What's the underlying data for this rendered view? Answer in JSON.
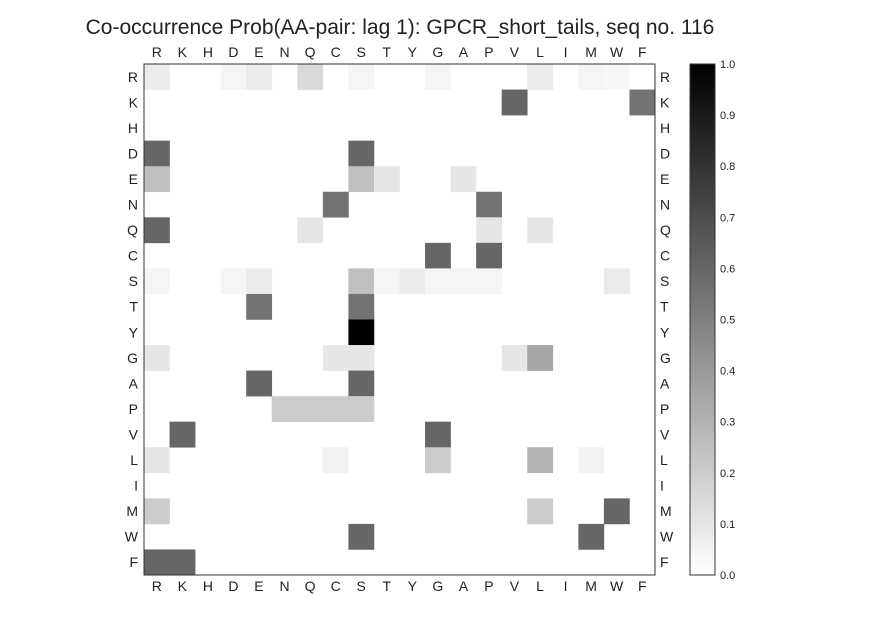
{
  "chart_data": {
    "type": "heatmap",
    "title": "Co-occurrence Prob(AA-pair: lag 1):  GPCR_short_tails, seq no. 116",
    "x_categories": [
      "R",
      "K",
      "H",
      "D",
      "E",
      "N",
      "Q",
      "C",
      "S",
      "T",
      "Y",
      "G",
      "A",
      "P",
      "V",
      "L",
      "I",
      "M",
      "W",
      "F"
    ],
    "y_categories": [
      "R",
      "K",
      "H",
      "D",
      "E",
      "N",
      "Q",
      "C",
      "S",
      "T",
      "Y",
      "G",
      "A",
      "P",
      "V",
      "L",
      "I",
      "M",
      "W",
      "F"
    ],
    "colormap": "Greys",
    "color_low": "#ffffff",
    "color_high": "#000000",
    "vmin": 0.0,
    "vmax": 1.0,
    "colorbar_ticks": [
      "0.0",
      "0.1",
      "0.2",
      "0.3",
      "0.4",
      "0.5",
      "0.6",
      "0.7",
      "0.8",
      "0.9",
      "1.0"
    ],
    "grid": false,
    "values": [
      [
        0.08,
        0,
        0,
        0.04,
        0.08,
        0,
        0.15,
        0,
        0.04,
        0,
        0,
        0.04,
        0,
        0,
        0,
        0.08,
        0,
        0.04,
        0.03,
        0
      ],
      [
        0,
        0,
        0,
        0,
        0,
        0,
        0,
        0,
        0,
        0,
        0,
        0,
        0,
        0,
        0.6,
        0,
        0,
        0,
        0,
        0.55
      ],
      [
        0,
        0,
        0,
        0,
        0,
        0,
        0,
        0,
        0,
        0,
        0,
        0,
        0,
        0,
        0,
        0,
        0,
        0,
        0,
        0
      ],
      [
        0.6,
        0,
        0,
        0,
        0,
        0,
        0,
        0,
        0.6,
        0,
        0,
        0,
        0,
        0,
        0,
        0,
        0,
        0,
        0,
        0
      ],
      [
        0.25,
        0,
        0,
        0,
        0,
        0,
        0,
        0,
        0.25,
        0.1,
        0,
        0,
        0.1,
        0,
        0,
        0,
        0,
        0,
        0,
        0
      ],
      [
        0,
        0,
        0,
        0,
        0,
        0,
        0,
        0.55,
        0,
        0,
        0,
        0,
        0,
        0.55,
        0,
        0,
        0,
        0,
        0,
        0
      ],
      [
        0.6,
        0,
        0,
        0,
        0,
        0,
        0.1,
        0,
        0,
        0,
        0,
        0,
        0,
        0.1,
        0,
        0.1,
        0,
        0,
        0,
        0
      ],
      [
        0,
        0,
        0,
        0,
        0,
        0,
        0,
        0,
        0,
        0,
        0,
        0.6,
        0,
        0.6,
        0,
        0,
        0,
        0,
        0,
        0
      ],
      [
        0.04,
        0,
        0,
        0.04,
        0.08,
        0,
        0,
        0,
        0.25,
        0.04,
        0.08,
        0.04,
        0.04,
        0.04,
        0,
        0,
        0,
        0,
        0.08,
        0
      ],
      [
        0,
        0,
        0,
        0,
        0.55,
        0,
        0,
        0,
        0.55,
        0,
        0,
        0,
        0,
        0,
        0,
        0,
        0,
        0,
        0,
        0
      ],
      [
        0,
        0,
        0,
        0,
        0,
        0,
        0,
        0,
        1.0,
        0,
        0,
        0,
        0,
        0,
        0,
        0,
        0,
        0,
        0,
        0
      ],
      [
        0.1,
        0,
        0,
        0,
        0,
        0,
        0,
        0.1,
        0.1,
        0,
        0,
        0,
        0,
        0,
        0.1,
        0.35,
        0,
        0,
        0,
        0
      ],
      [
        0,
        0,
        0,
        0,
        0.6,
        0,
        0,
        0,
        0.6,
        0,
        0,
        0,
        0,
        0,
        0,
        0,
        0,
        0,
        0,
        0
      ],
      [
        0,
        0,
        0,
        0,
        0,
        0.2,
        0.2,
        0.2,
        0.2,
        0,
        0,
        0,
        0,
        0,
        0,
        0,
        0,
        0,
        0,
        0
      ],
      [
        0,
        0.6,
        0,
        0,
        0,
        0,
        0,
        0,
        0,
        0,
        0,
        0.6,
        0,
        0,
        0,
        0,
        0,
        0,
        0,
        0
      ],
      [
        0.1,
        0,
        0,
        0,
        0,
        0,
        0,
        0.05,
        0,
        0,
        0,
        0.2,
        0,
        0,
        0,
        0.3,
        0,
        0.05,
        0,
        0
      ],
      [
        0,
        0,
        0,
        0,
        0,
        0,
        0,
        0,
        0,
        0,
        0,
        0,
        0,
        0,
        0,
        0,
        0,
        0,
        0,
        0
      ],
      [
        0.2,
        0,
        0,
        0,
        0,
        0,
        0,
        0,
        0,
        0,
        0,
        0,
        0,
        0,
        0,
        0.2,
        0,
        0,
        0.6,
        0
      ],
      [
        0,
        0,
        0,
        0,
        0,
        0,
        0,
        0,
        0.6,
        0,
        0,
        0,
        0,
        0,
        0,
        0,
        0,
        0.6,
        0,
        0
      ],
      [
        0.6,
        0.6,
        0,
        0,
        0,
        0,
        0,
        0,
        0,
        0,
        0,
        0,
        0,
        0,
        0,
        0,
        0,
        0,
        0,
        0
      ]
    ]
  }
}
